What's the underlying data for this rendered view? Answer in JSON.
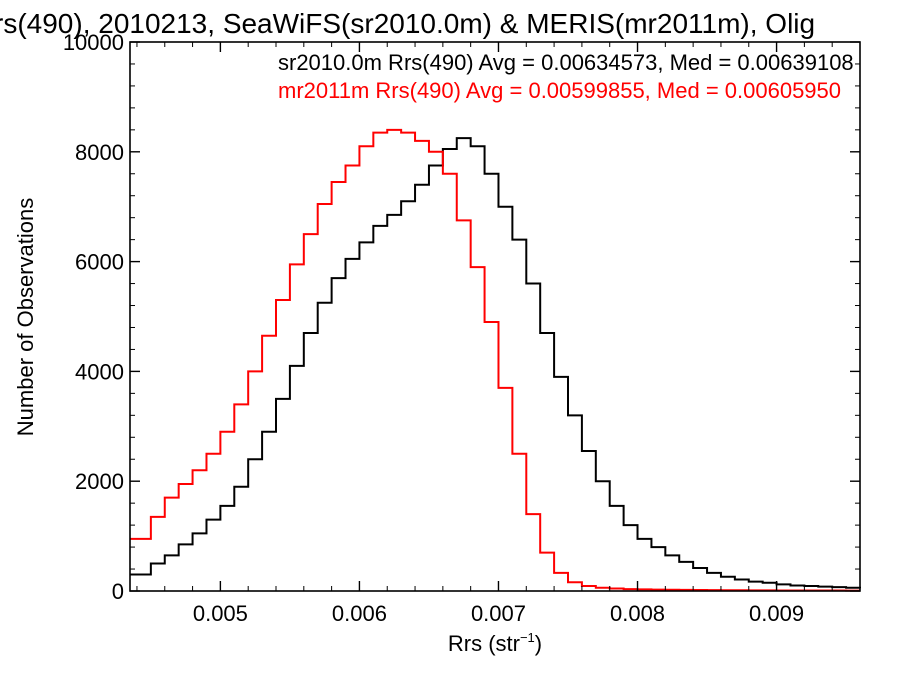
{
  "chart_data": {
    "type": "line",
    "title": "rs(490), 2010213, SeaWiFS(sr2010.0m) & MERIS(mr2011m), Olig",
    "xlabel_base": "Rrs (str",
    "xlabel_sup": "−1",
    "xlabel_close": ")",
    "ylabel": "Number of Observations",
    "xlim": [
      0.00435,
      0.0096
    ],
    "ylim": [
      0,
      10000
    ],
    "xticks": [
      0.005,
      0.006,
      0.007,
      0.008,
      0.009
    ],
    "xtick_labels": [
      "0.005",
      "0.006",
      "0.007",
      "0.008",
      "0.009"
    ],
    "yticks": [
      0,
      2000,
      4000,
      6000,
      8000,
      10000
    ],
    "ytick_labels": [
      "0",
      "2000",
      "4000",
      "6000",
      "8000",
      "10000"
    ],
    "grid": false,
    "step": true,
    "annotations": [
      {
        "text": "sr2010.0m Rrs(490) Avg = 0.00634573, Med = 0.00639108",
        "color": "#000000"
      },
      {
        "text": "mr2011m Rrs(490) Avg = 0.00599855, Med = 0.00605950",
        "color": "#ff0000"
      }
    ],
    "series": [
      {
        "color": "#000000",
        "x": [
          0.00435,
          0.0045,
          0.0046,
          0.0047,
          0.0048,
          0.0049,
          0.005,
          0.0051,
          0.0052,
          0.0053,
          0.0054,
          0.0055,
          0.0056,
          0.0057,
          0.0058,
          0.0059,
          0.006,
          0.0061,
          0.0062,
          0.0063,
          0.0064,
          0.0065,
          0.0066,
          0.0067,
          0.0068,
          0.0069,
          0.007,
          0.0071,
          0.0072,
          0.0073,
          0.0074,
          0.0075,
          0.0076,
          0.0077,
          0.0078,
          0.0079,
          0.008,
          0.0081,
          0.0082,
          0.0083,
          0.0084,
          0.0085,
          0.0086,
          0.0087,
          0.0088,
          0.0089,
          0.009,
          0.0091,
          0.0092,
          0.0093,
          0.0094,
          0.0095,
          0.0096
        ],
        "y": [
          300,
          500,
          650,
          850,
          1050,
          1300,
          1550,
          1900,
          2400,
          2900,
          3500,
          4100,
          4700,
          5250,
          5700,
          6050,
          6350,
          6650,
          6850,
          7100,
          7400,
          7750,
          8050,
          8250,
          8100,
          7600,
          7000,
          6400,
          5600,
          4700,
          3900,
          3200,
          2550,
          2000,
          1550,
          1200,
          950,
          800,
          650,
          530,
          420,
          330,
          260,
          210,
          170,
          150,
          120,
          100,
          90,
          80,
          70,
          60,
          50
        ]
      },
      {
        "color": "#ff0000",
        "x": [
          0.00435,
          0.0045,
          0.0046,
          0.0047,
          0.0048,
          0.0049,
          0.005,
          0.0051,
          0.0052,
          0.0053,
          0.0054,
          0.0055,
          0.0056,
          0.0057,
          0.0058,
          0.0059,
          0.006,
          0.0061,
          0.0062,
          0.0063,
          0.0064,
          0.0065,
          0.0066,
          0.0067,
          0.0068,
          0.0069,
          0.007,
          0.0071,
          0.0072,
          0.0073,
          0.0074,
          0.0075,
          0.0076,
          0.0077,
          0.0078,
          0.0079,
          0.008,
          0.0081,
          0.0082,
          0.0083,
          0.0084,
          0.0085,
          0.0086,
          0.0087,
          0.0088,
          0.0089,
          0.009,
          0.0091,
          0.0092,
          0.0093,
          0.0094,
          0.0095,
          0.0096
        ],
        "y": [
          950,
          1350,
          1700,
          1950,
          2200,
          2500,
          2900,
          3400,
          4000,
          4650,
          5300,
          5950,
          6500,
          7050,
          7450,
          7750,
          8100,
          8350,
          8400,
          8350,
          8200,
          8000,
          7600,
          6750,
          5900,
          4900,
          3700,
          2500,
          1400,
          700,
          330,
          160,
          90,
          60,
          45,
          35,
          30,
          25,
          22,
          20,
          18,
          16,
          14,
          13,
          12,
          11,
          10,
          10,
          9,
          8,
          8,
          7,
          7
        ]
      }
    ]
  }
}
